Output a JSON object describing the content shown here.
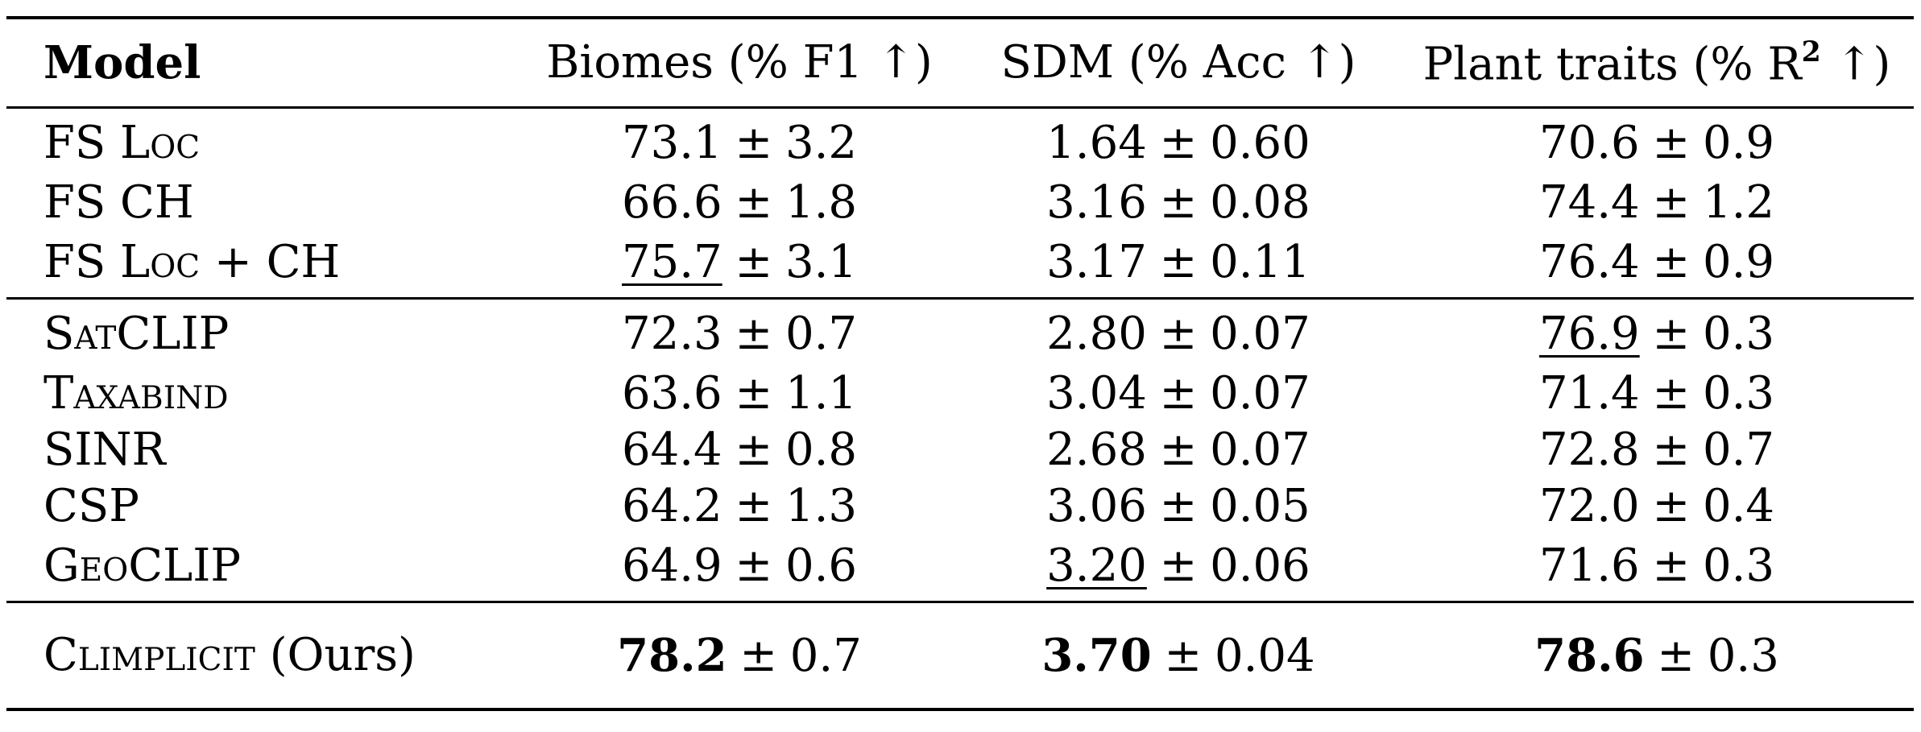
{
  "table": {
    "headers": {
      "model": "Model",
      "biomes": "Biomes (% F1 ↑)",
      "sdm": "SDM (% Acc ↑)",
      "traits_prefix": "Plant traits (% R",
      "traits_sup": "2",
      "traits_suffix": " ↑)"
    },
    "pm": "±",
    "groups": [
      {
        "rows": [
          {
            "model": "FS Loc",
            "biomes": {
              "mean": "73.1",
              "std": "3.2"
            },
            "sdm": {
              "mean": "1.64",
              "std": "0.60"
            },
            "traits": {
              "mean": "70.6",
              "std": "0.9"
            }
          },
          {
            "model": "FS CH",
            "biomes": {
              "mean": "66.6",
              "std": "1.8"
            },
            "sdm": {
              "mean": "3.16",
              "std": "0.08"
            },
            "traits": {
              "mean": "74.4",
              "std": "1.2"
            }
          },
          {
            "model": "FS Loc + CH",
            "biomes": {
              "mean": "75.7",
              "std": "3.1",
              "underline": true
            },
            "sdm": {
              "mean": "3.17",
              "std": "0.11"
            },
            "traits": {
              "mean": "76.4",
              "std": "0.9"
            }
          }
        ]
      },
      {
        "rows": [
          {
            "model": "SatCLIP",
            "biomes": {
              "mean": "72.3",
              "std": "0.7"
            },
            "sdm": {
              "mean": "2.80",
              "std": "0.07"
            },
            "traits": {
              "mean": "76.9",
              "std": "0.3",
              "underline": true
            }
          },
          {
            "model": "Taxabind",
            "biomes": {
              "mean": "63.6",
              "std": "1.1"
            },
            "sdm": {
              "mean": "3.04",
              "std": "0.07"
            },
            "traits": {
              "mean": "71.4",
              "std": "0.3"
            }
          },
          {
            "model": "SINR",
            "biomes": {
              "mean": "64.4",
              "std": "0.8"
            },
            "sdm": {
              "mean": "2.68",
              "std": "0.07"
            },
            "traits": {
              "mean": "72.8",
              "std": "0.7"
            }
          },
          {
            "model": "CSP",
            "biomes": {
              "mean": "64.2",
              "std": "1.3"
            },
            "sdm": {
              "mean": "3.06",
              "std": "0.05"
            },
            "traits": {
              "mean": "72.0",
              "std": "0.4"
            }
          },
          {
            "model": "GeoCLIP",
            "biomes": {
              "mean": "64.9",
              "std": "0.6"
            },
            "sdm": {
              "mean": "3.20",
              "std": "0.06",
              "underline": true
            },
            "traits": {
              "mean": "71.6",
              "std": "0.3"
            }
          }
        ]
      },
      {
        "rows": [
          {
            "model": "Climplicit (Ours)",
            "biomes": {
              "mean": "78.2",
              "std": "0.7",
              "bold": true
            },
            "sdm": {
              "mean": "3.70",
              "std": "0.04",
              "bold": true
            },
            "traits": {
              "mean": "78.6",
              "std": "0.3",
              "bold": true
            }
          }
        ]
      }
    ]
  }
}
